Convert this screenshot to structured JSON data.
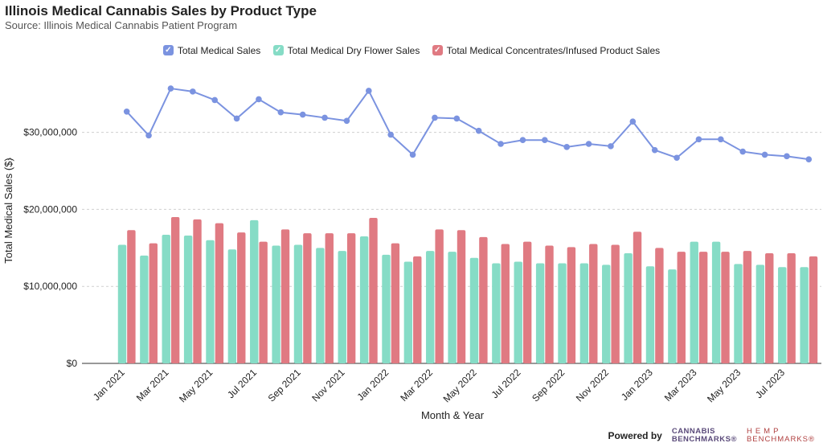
{
  "title": "Illinois Medical Cannabis Sales by Product Type",
  "subtitle": "Source: Illinois Medical Cannabis Patient Program",
  "footer": {
    "powered_by": "Powered by",
    "logo_cannabis_line1": "CANNABIS",
    "logo_cannabis_line2": "BENCHMARKS®",
    "logo_hemp_line1": "HEMP",
    "logo_hemp_line2": "BENCHMARKS®"
  },
  "legend_check_icon": "checkmark-icon",
  "chart_data": {
    "type": "bar",
    "title": "Illinois Medical Cannabis Sales by Product Type",
    "xlabel": "Month & Year",
    "ylabel": "Total Medical Sales ($)",
    "ylim": [
      0,
      38000000
    ],
    "y_ticks": [
      0,
      10000000,
      20000000,
      30000000
    ],
    "y_tick_labels": [
      "$0",
      "$10,000,000",
      "$20,000,000",
      "$30,000,000"
    ],
    "grid": true,
    "legend_position": "top-center",
    "categories": [
      "Jan 2021",
      "Feb 2021",
      "Mar 2021",
      "Apr 2021",
      "May 2021",
      "Jun 2021",
      "Jul 2021",
      "Aug 2021",
      "Sep 2021",
      "Oct 2021",
      "Nov 2021",
      "Dec 2021",
      "Jan 2022",
      "Feb 2022",
      "Mar 2022",
      "Apr 2022",
      "May 2022",
      "Jun 2022",
      "Jul 2022",
      "Aug 2022",
      "Sep 2022",
      "Oct 2022",
      "Nov 2022",
      "Dec 2022",
      "Jan 2023",
      "Feb 2023",
      "Mar 2023",
      "Apr 2023",
      "May 2023",
      "Jun 2023",
      "Jul 2023",
      "Aug 2023"
    ],
    "x_tick_labels": [
      "Jan 2021",
      "Mar 2021",
      "May 2021",
      "Jul 2021",
      "Sep 2021",
      "Nov 2021",
      "Jan 2022",
      "Mar 2022",
      "May 2022",
      "Jul 2022",
      "Sep 2022",
      "Nov 2022",
      "Jan 2023",
      "Mar 2023",
      "May 2023",
      "Jul 2023"
    ],
    "series": [
      {
        "name": "Total Medical Sales",
        "kind": "line",
        "color": "#7b93e0",
        "values": [
          32700000,
          29600000,
          35700000,
          35300000,
          34200000,
          31800000,
          34300000,
          32600000,
          32300000,
          31900000,
          31500000,
          35400000,
          29700000,
          27100000,
          31900000,
          31800000,
          30200000,
          28500000,
          29000000,
          29000000,
          28100000,
          28500000,
          28200000,
          31400000,
          27700000,
          26700000,
          29100000,
          29100000,
          27500000,
          27100000,
          26900000,
          26500000
        ]
      },
      {
        "name": "Total Medical Dry Flower Sales",
        "kind": "bar",
        "color": "#86dcc6",
        "values": [
          15400000,
          14000000,
          16700000,
          16600000,
          16000000,
          14800000,
          18600000,
          15300000,
          15400000,
          15000000,
          14600000,
          16500000,
          14100000,
          13200000,
          14600000,
          14500000,
          13700000,
          13000000,
          13200000,
          13000000,
          13000000,
          13000000,
          12800000,
          14300000,
          12600000,
          12200000,
          15800000,
          15800000,
          12900000,
          12800000,
          12500000,
          12500000
        ]
      },
      {
        "name": "Total Medical Concentrates/Infused Product Sales",
        "kind": "bar",
        "color": "#e07a82",
        "values": [
          17300000,
          15600000,
          19000000,
          18700000,
          18200000,
          17000000,
          15800000,
          17400000,
          16900000,
          16900000,
          16900000,
          18900000,
          15600000,
          13900000,
          17400000,
          17300000,
          16400000,
          15500000,
          15800000,
          15300000,
          15100000,
          15500000,
          15400000,
          17100000,
          15000000,
          14500000,
          14500000,
          14500000,
          14600000,
          14300000,
          14300000,
          13900000
        ]
      }
    ]
  }
}
